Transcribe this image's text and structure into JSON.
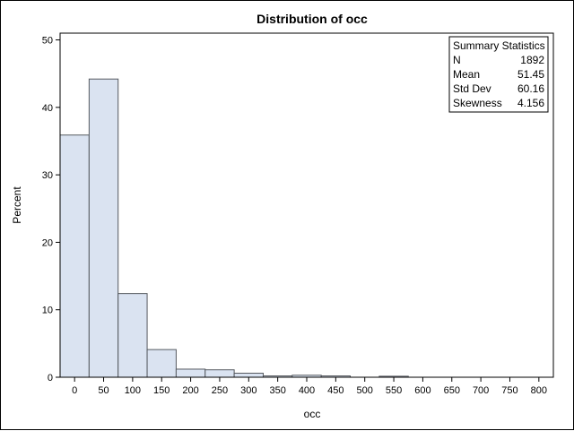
{
  "colors": {
    "bar_fill": "#dae3f1",
    "bar_stroke": "#555a60",
    "axis": "#000000",
    "background": "#ffffff"
  },
  "chart_data": {
    "type": "bar",
    "title": "Distribution of occ",
    "xlabel": "occ",
    "ylabel": "Percent",
    "bin_width": 50,
    "bin_start": -25,
    "xlim": [
      -25,
      825
    ],
    "ylim": [
      0,
      51
    ],
    "x_ticks": [
      0,
      50,
      100,
      150,
      200,
      250,
      300,
      350,
      400,
      450,
      500,
      550,
      600,
      650,
      700,
      750,
      800
    ],
    "x_tick_labels": [
      "0",
      "50",
      "100",
      "150",
      "200",
      "250",
      "300",
      "350",
      "400",
      "450",
      "500",
      "550",
      "600",
      "650",
      "700",
      "750",
      "800"
    ],
    "y_ticks": [
      0,
      10,
      20,
      30,
      40,
      50
    ],
    "y_tick_labels": [
      "0",
      "10",
      "20",
      "30",
      "40",
      "50"
    ],
    "bins": [
      {
        "center": 0,
        "value": 35.9
      },
      {
        "center": 50,
        "value": 44.2
      },
      {
        "center": 100,
        "value": 12.4
      },
      {
        "center": 150,
        "value": 4.1
      },
      {
        "center": 200,
        "value": 1.2
      },
      {
        "center": 250,
        "value": 1.1
      },
      {
        "center": 300,
        "value": 0.6
      },
      {
        "center": 350,
        "value": 0.2
      },
      {
        "center": 400,
        "value": 0.3
      },
      {
        "center": 450,
        "value": 0.2
      },
      {
        "center": 500,
        "value": 0.0
      },
      {
        "center": 550,
        "value": 0.15
      }
    ],
    "grid": false,
    "legend": "none",
    "inset_position": "top-right",
    "summary_statistics": {
      "title": "Summary Statistics",
      "rows": [
        {
          "label": "N",
          "value": "1892"
        },
        {
          "label": "Mean",
          "value": "51.45"
        },
        {
          "label": "Std Dev",
          "value": "60.16"
        },
        {
          "label": "Skewness",
          "value": "4.156"
        }
      ]
    }
  }
}
